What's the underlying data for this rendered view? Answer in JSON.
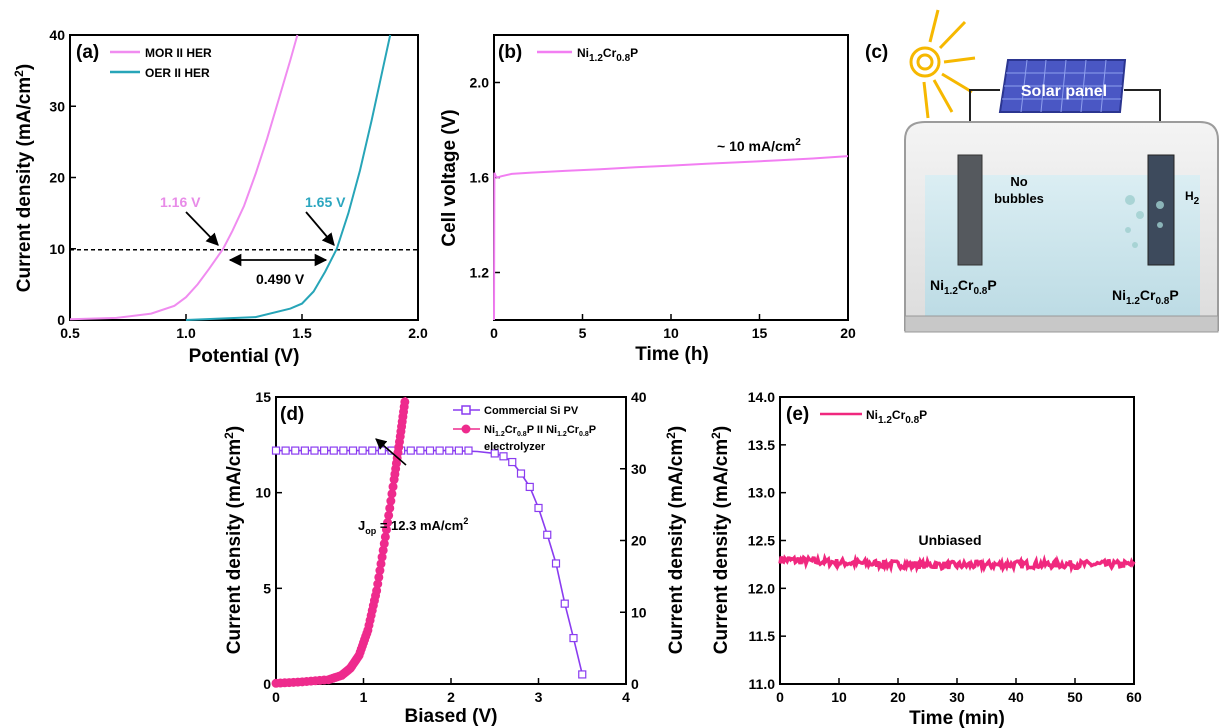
{
  "colors": {
    "mor": "#f08cf0",
    "oer": "#27a5b8",
    "ni_pink": "#f27ef2",
    "pv": "#8a3cf0",
    "electrolyzer": "#ee2b8d",
    "e_line": "#f0287e",
    "anno_mor": "#e88be8",
    "anno_oer": "#2ba6bf",
    "sun": "#f6b800",
    "water": "#cfe7ee",
    "panel": "#4a57c4"
  },
  "chart_data": [
    {
      "panel": "(a)",
      "type": "line",
      "xlabel": "Potential (V)",
      "ylabel": "Current density (mA/cm",
      "ylabel_sup": "2",
      "ylabel_end": ")",
      "xlim": [
        0.5,
        2.0
      ],
      "ylim": [
        0,
        40
      ],
      "xticks": [
        "0.5",
        "1.0",
        "1.5",
        "2.0"
      ],
      "yticks": [
        "0",
        "10",
        "20",
        "30",
        "40"
      ],
      "legend": [
        "MOR II HER",
        "OER II HER"
      ],
      "series": [
        {
          "name": "MOR II HER",
          "x": [
            0.5,
            0.7,
            0.85,
            0.95,
            1.0,
            1.05,
            1.1,
            1.16,
            1.2,
            1.25,
            1.3,
            1.35,
            1.4,
            1.45,
            1.48
          ],
          "y": [
            0.1,
            0.3,
            0.9,
            2.0,
            3.2,
            5.0,
            7.2,
            10.0,
            12.5,
            16.0,
            20.5,
            25.5,
            31.0,
            36.5,
            40.0
          ]
        },
        {
          "name": "OER II HER",
          "x": [
            1.0,
            1.3,
            1.45,
            1.5,
            1.55,
            1.6,
            1.65,
            1.7,
            1.75,
            1.8,
            1.85,
            1.88
          ],
          "y": [
            0.0,
            0.4,
            1.6,
            2.3,
            4.0,
            6.8,
            10.0,
            15.0,
            21.0,
            28.0,
            35.5,
            40.0
          ]
        }
      ],
      "reference_y": 10,
      "annotations": {
        "mor": "1.16 V",
        "oer": "1.65 V",
        "gap": "0.490 V"
      }
    },
    {
      "panel": "(b)",
      "type": "line",
      "xlabel": "Time (h)",
      "ylabel": "Cell voltage (V)",
      "xlim": [
        0,
        20
      ],
      "ylim": [
        1.0,
        2.2
      ],
      "xticks": [
        "0",
        "5",
        "10",
        "15",
        "20"
      ],
      "yticks": [
        "1.2",
        "1.6",
        "2.0"
      ],
      "legend_main": "Ni",
      "legend_sub1": "1.2",
      "legend_mid": "Cr",
      "legend_sub2": "0.8",
      "legend_end": "P",
      "series": [
        {
          "x": [
            0,
            0.02,
            0.05,
            0.1,
            0.2,
            0.4,
            1,
            2,
            4,
            6,
            8,
            10,
            12,
            14,
            16,
            18,
            20
          ],
          "y": [
            1.0,
            1.62,
            1.615,
            1.605,
            1.6,
            1.605,
            1.615,
            1.62,
            1.628,
            1.635,
            1.643,
            1.65,
            1.658,
            1.665,
            1.672,
            1.68,
            1.69
          ]
        }
      ],
      "annotation": "~ 10 mA/cm",
      "annotation_sup": "2"
    },
    {
      "panel": "(d)",
      "type": "line",
      "xlabel": "Biased (V)",
      "ylabel_left": "Current density (mA/cm",
      "ylabel_right": "Current density (mA/cm",
      "ylabel_sup": "2",
      "ylabel_end": ")",
      "xlim": [
        0,
        4
      ],
      "ylim_left": [
        0,
        15
      ],
      "ylim_right": [
        0,
        40
      ],
      "xticks": [
        "0",
        "1",
        "2",
        "3",
        "4"
      ],
      "yticks_left": [
        "0",
        "5",
        "10",
        "15"
      ],
      "yticks_right": [
        "0",
        "10",
        "20",
        "30",
        "40"
      ],
      "legend_pv": "Commercial Si PV",
      "legend_el_a": "Ni",
      "legend_el_s1": "1.2",
      "legend_el_b": "Cr",
      "legend_el_s2": "0.8",
      "legend_el_c": "P II Ni",
      "legend_el_s3": "1.2",
      "legend_el_d": "Cr",
      "legend_el_s4": "0.8",
      "legend_el_e": "P",
      "legend_el_line2": "electrolyzer",
      "series": [
        {
          "name": "Commercial Si PV",
          "axis": "left",
          "x": [
            0,
            0.5,
            1.0,
            1.5,
            2.0,
            2.3,
            2.5,
            2.6,
            2.7,
            2.8,
            2.9,
            3.0,
            3.1,
            3.2,
            3.3,
            3.4,
            3.5
          ],
          "y": [
            12.2,
            12.2,
            12.2,
            12.2,
            12.2,
            12.15,
            12.05,
            11.9,
            11.6,
            11.0,
            10.3,
            9.2,
            7.8,
            6.3,
            4.2,
            2.4,
            0.5
          ]
        },
        {
          "x": [
            0,
            0.3,
            0.6,
            0.75,
            0.85,
            0.95,
            1.05,
            1.15,
            1.25,
            1.35,
            1.42,
            1.48
          ],
          "y": [
            0.1,
            0.3,
            0.6,
            1.2,
            2.2,
            4.0,
            7.5,
            13.0,
            20.5,
            28.5,
            34.5,
            40.0
          ]
        }
      ],
      "annotation_a": "J",
      "annotation_sub": "op",
      "annotation_b": " = 12.3 mA/cm",
      "annotation_sup": "2"
    },
    {
      "panel": "(e)",
      "type": "line",
      "xlabel": "Time (min)",
      "ylabel": "Current density (mA/cm",
      "ylabel_sup": "2",
      "ylabel_end": ")",
      "xlim": [
        0,
        60
      ],
      "ylim": [
        11.0,
        14.0
      ],
      "xticks": [
        "0",
        "10",
        "20",
        "30",
        "40",
        "50",
        "60"
      ],
      "yticks": [
        "11.0",
        "11.5",
        "12.0",
        "12.5",
        "13.0",
        "13.5",
        "14.0"
      ],
      "legend_main": "Ni",
      "legend_sub1": "1.2",
      "legend_mid": "Cr",
      "legend_sub2": "0.8",
      "legend_end": "P",
      "series": [
        {
          "x": [
            0,
            10,
            20,
            30,
            40,
            50,
            60
          ],
          "y": [
            12.3,
            12.27,
            12.25,
            12.24,
            12.25,
            12.25,
            12.25
          ]
        }
      ],
      "annotation": "Unbiased"
    }
  ],
  "schematic": {
    "panel": "(c)",
    "solar_label": "Solar panel",
    "no_bubbles_1": "No",
    "no_bubbles_2": "bubbles",
    "h2": "H",
    "h2_sub": "2",
    "el_a": "Ni",
    "el_s1": "1.2",
    "el_b": "Cr",
    "el_s2": "0.8",
    "el_c": "P"
  }
}
